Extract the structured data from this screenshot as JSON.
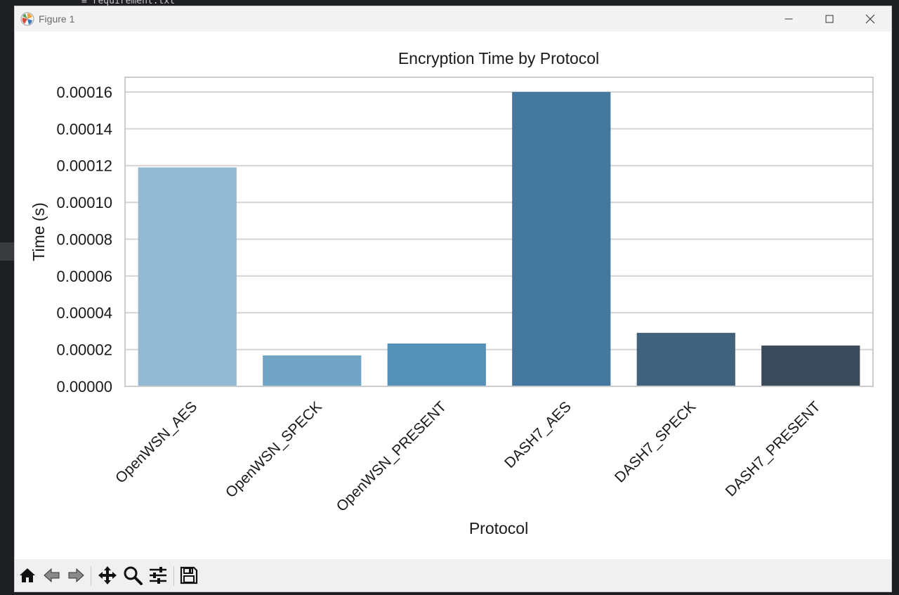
{
  "background": {
    "editor_filename": "≡ requirement.txt"
  },
  "window": {
    "title": "Figure 1"
  },
  "toolbar": {
    "tools": [
      {
        "name": "home-icon",
        "label": "Home"
      },
      {
        "name": "back-icon",
        "label": "Back"
      },
      {
        "name": "forward-icon",
        "label": "Forward"
      },
      {
        "name": "pan-icon",
        "label": "Pan"
      },
      {
        "name": "zoom-icon",
        "label": "Zoom"
      },
      {
        "name": "configure-subplots-icon",
        "label": "Configure subplots"
      },
      {
        "name": "save-icon",
        "label": "Save"
      }
    ]
  },
  "colors": {
    "bars": [
      "#93b8d3",
      "#72a4c5",
      "#5590b9",
      "#44789f",
      "#41627d",
      "#3a4a5a"
    ],
    "grid": "#d4d4d4",
    "spine": "#cccccc"
  },
  "chart_data": {
    "type": "bar",
    "title": "Encryption Time by Protocol",
    "xlabel": "Protocol",
    "ylabel": "Time (s)",
    "categories": [
      "OpenWSN_AES",
      "OpenWSN_SPECK",
      "OpenWSN_PRESENT",
      "DASH7_AES",
      "DASH7_SPECK",
      "DASH7_PRESENT"
    ],
    "values": [
      0.000119,
      1.68e-05,
      2.33e-05,
      0.00016,
      2.91e-05,
      2.22e-05
    ],
    "ylim": [
      0,
      0.000168
    ],
    "yticks": [
      0,
      2e-05,
      4e-05,
      6e-05,
      8e-05,
      0.0001,
      0.00012,
      0.00014,
      0.00016
    ],
    "ytick_labels": [
      "0.00000",
      "0.00002",
      "0.00004",
      "0.00006",
      "0.00008",
      "0.00010",
      "0.00012",
      "0.00014",
      "0.00016"
    ],
    "grid": true,
    "xtick_rotation": "45°"
  }
}
